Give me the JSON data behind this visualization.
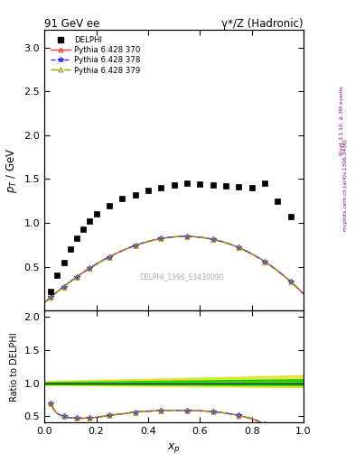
{
  "title_left": "91 GeV ee",
  "title_right": "γ*/Z (Hadronic)",
  "xlabel": "$x_p$",
  "ylabel_main": "$p_T$ / GeV",
  "ylabel_ratio": "Ratio to DELPHI",
  "watermark": "DELPHI_1996_S3430090",
  "right_label": "Rivet 3.1.10, ≥ 3M events",
  "right_label2": "mcplots.cern.ch [arXiv:1306.3436]",
  "xlim": [
    0,
    1
  ],
  "ylim_main": [
    0,
    3.2
  ],
  "ylim_ratio": [
    0.4,
    2.1
  ],
  "yticks_main": [
    0.5,
    1.0,
    1.5,
    2.0,
    2.5,
    3.0
  ],
  "yticks_ratio": [
    0.5,
    1.0,
    1.5,
    2.0
  ],
  "data_x": [
    0.025,
    0.05,
    0.075,
    0.1,
    0.125,
    0.15,
    0.175,
    0.2,
    0.25,
    0.3,
    0.35,
    0.4,
    0.45,
    0.5,
    0.55,
    0.6,
    0.65,
    0.7,
    0.75,
    0.8,
    0.85,
    0.9,
    0.95
  ],
  "data_y": [
    0.22,
    0.4,
    0.55,
    0.7,
    0.82,
    0.93,
    1.02,
    1.1,
    1.2,
    1.28,
    1.32,
    1.37,
    1.4,
    1.43,
    1.45,
    1.44,
    1.43,
    1.42,
    1.41,
    1.4,
    1.45,
    1.25,
    1.07
  ],
  "data_yerr": [
    0.008,
    0.008,
    0.008,
    0.008,
    0.008,
    0.008,
    0.008,
    0.008,
    0.008,
    0.008,
    0.008,
    0.008,
    0.008,
    0.008,
    0.008,
    0.008,
    0.008,
    0.008,
    0.008,
    0.008,
    0.01,
    0.015,
    0.025
  ],
  "mc1_color": "#ff3333",
  "mc2_color": "#3333ff",
  "mc3_color": "#999900",
  "mc1_label": "Pythia 6.428 370",
  "mc2_label": "Pythia 6.428 378",
  "mc3_label": "Pythia 6.428 379",
  "data_color": "#000000",
  "band_green": "#00cc00",
  "band_yellow": "#dddd00",
  "bg_color": "#ffffff"
}
